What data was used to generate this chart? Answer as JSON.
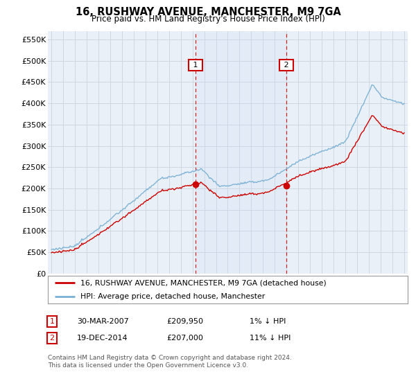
{
  "title": "16, RUSHWAY AVENUE, MANCHESTER, M9 7GA",
  "subtitle": "Price paid vs. HM Land Registry's House Price Index (HPI)",
  "ylabel_ticks": [
    "£0",
    "£50K",
    "£100K",
    "£150K",
    "£200K",
    "£250K",
    "£300K",
    "£350K",
    "£400K",
    "£450K",
    "£500K",
    "£550K"
  ],
  "ytick_values": [
    0,
    50000,
    100000,
    150000,
    200000,
    250000,
    300000,
    350000,
    400000,
    450000,
    500000,
    550000
  ],
  "ylim": [
    0,
    570000
  ],
  "xlim_start": 1994.7,
  "xlim_end": 2025.3,
  "purchase1": {
    "date": "30-MAR-2007",
    "year": 2007.25,
    "price": 209950,
    "label": "1",
    "note": "1% ↓ HPI"
  },
  "purchase2": {
    "date": "19-DEC-2014",
    "year": 2014.97,
    "price": 207000,
    "label": "2",
    "note": "11% ↓ HPI"
  },
  "legend_property": "16, RUSHWAY AVENUE, MANCHESTER, M9 7GA (detached house)",
  "legend_hpi": "HPI: Average price, detached house, Manchester",
  "footer": "Contains HM Land Registry data © Crown copyright and database right 2024.\nThis data is licensed under the Open Government Licence v3.0.",
  "property_color": "#cc0000",
  "hpi_color": "#7ab0d4",
  "background_color": "#ffffff",
  "plot_bg_color": "#eaf0f8",
  "grid_color": "#c8d4e0",
  "annotation_box_color": "#cc0000"
}
